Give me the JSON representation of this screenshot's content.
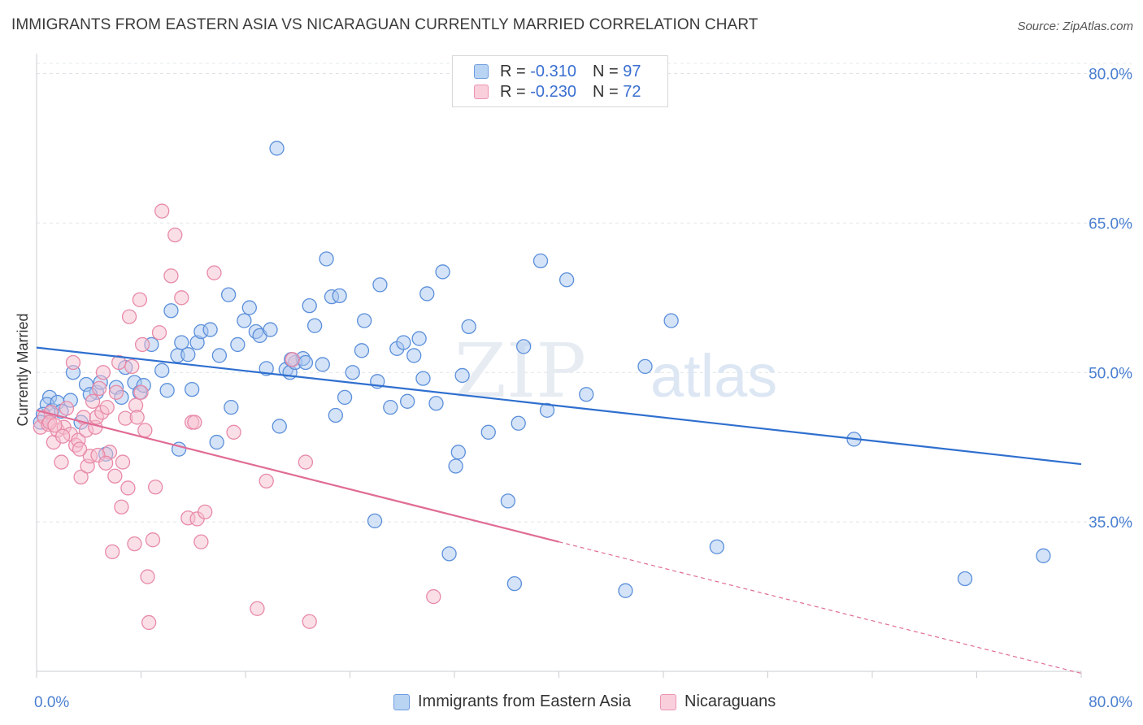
{
  "title": "IMMIGRANTS FROM EASTERN ASIA VS NICARAGUAN CURRENTLY MARRIED CORRELATION CHART",
  "source": "Source: ZipAtlas.com",
  "watermark": "ZIPatlas",
  "legend_box": {
    "rows": [
      {
        "r_label": "R =",
        "r_value": "-0.310",
        "n_label": "N =",
        "n_value": "97"
      },
      {
        "r_label": "R =",
        "r_value": "-0.230",
        "n_label": "N =",
        "n_value": "72"
      }
    ]
  },
  "bottom_legend": [
    "Immigrants from Eastern Asia",
    "Nicaraguans"
  ],
  "colors": {
    "blue_fill": "#a9c8f0",
    "blue_stroke": "#5b8fdb",
    "blue_line": "#2f6fcf",
    "pink_fill": "#f6bfd0",
    "pink_stroke": "#e88aa8",
    "pink_line": "#e06c95"
  },
  "chart_data": {
    "type": "scatter",
    "xlabel": "",
    "ylabel": "Currently Married",
    "xlim": [
      0,
      80
    ],
    "ylim": [
      20,
      82
    ],
    "x_tick_labels": [
      "0.0%",
      "80.0%"
    ],
    "y_ticks": [
      35,
      50,
      65,
      80
    ],
    "y_tick_labels": [
      "35.0%",
      "50.0%",
      "65.0%",
      "80.0%"
    ],
    "grid": true,
    "legend_position": "top-center",
    "series": [
      {
        "name": "Immigrants from Eastern Asia",
        "R": -0.31,
        "N": 97,
        "trend": {
          "x0": 0,
          "y0": 52.5,
          "x1": 80,
          "y1": 40.8
        },
        "points": [
          [
            1.0,
            47.5
          ],
          [
            0.8,
            46.8
          ],
          [
            1.2,
            46.2
          ],
          [
            0.5,
            45.8
          ],
          [
            1.6,
            47.0
          ],
          [
            2.6,
            47.2
          ],
          [
            2.8,
            50.0
          ],
          [
            3.4,
            45.0
          ],
          [
            3.8,
            48.8
          ],
          [
            4.6,
            48.0
          ],
          [
            4.9,
            49.0
          ],
          [
            5.3,
            41.8
          ],
          [
            6.1,
            48.5
          ],
          [
            6.5,
            47.5
          ],
          [
            6.8,
            50.5
          ],
          [
            7.5,
            49.0
          ],
          [
            7.9,
            48.0
          ],
          [
            8.2,
            48.7
          ],
          [
            8.8,
            52.8
          ],
          [
            9.6,
            50.2
          ],
          [
            10.0,
            48.2
          ],
          [
            10.3,
            56.2
          ],
          [
            10.8,
            51.7
          ],
          [
            11.1,
            53.0
          ],
          [
            11.6,
            51.8
          ],
          [
            11.9,
            48.3
          ],
          [
            12.3,
            53.0
          ],
          [
            12.6,
            54.1
          ],
          [
            13.3,
            54.3
          ],
          [
            13.8,
            43.0
          ],
          [
            14.0,
            51.7
          ],
          [
            14.7,
            57.8
          ],
          [
            14.9,
            46.5
          ],
          [
            15.4,
            52.8
          ],
          [
            15.9,
            55.2
          ],
          [
            16.3,
            56.5
          ],
          [
            16.8,
            54.1
          ],
          [
            17.1,
            53.7
          ],
          [
            17.6,
            50.4
          ],
          [
            17.9,
            54.3
          ],
          [
            18.4,
            72.5
          ],
          [
            18.6,
            44.6
          ],
          [
            19.1,
            50.3
          ],
          [
            19.4,
            50.0
          ],
          [
            19.8,
            51.0
          ],
          [
            20.4,
            51.4
          ],
          [
            20.6,
            51.0
          ],
          [
            20.9,
            56.7
          ],
          [
            21.3,
            54.7
          ],
          [
            21.9,
            50.8
          ],
          [
            22.2,
            61.4
          ],
          [
            22.6,
            57.6
          ],
          [
            22.9,
            45.7
          ],
          [
            23.2,
            57.7
          ],
          [
            23.6,
            47.5
          ],
          [
            24.2,
            50.0
          ],
          [
            24.9,
            52.2
          ],
          [
            25.1,
            55.2
          ],
          [
            26.1,
            49.1
          ],
          [
            26.3,
            58.8
          ],
          [
            27.1,
            46.5
          ],
          [
            27.6,
            52.4
          ],
          [
            28.1,
            53.0
          ],
          [
            28.4,
            47.1
          ],
          [
            28.9,
            51.7
          ],
          [
            29.3,
            53.4
          ],
          [
            29.6,
            49.4
          ],
          [
            29.9,
            57.9
          ],
          [
            30.6,
            46.9
          ],
          [
            31.1,
            60.1
          ],
          [
            31.6,
            31.8
          ],
          [
            32.1,
            40.6
          ],
          [
            32.3,
            42.0
          ],
          [
            32.6,
            49.7
          ],
          [
            33.1,
            54.6
          ],
          [
            34.6,
            44.0
          ],
          [
            36.1,
            37.1
          ],
          [
            36.6,
            28.8
          ],
          [
            37.3,
            52.6
          ],
          [
            38.6,
            61.2
          ],
          [
            39.1,
            46.2
          ],
          [
            40.6,
            59.3
          ],
          [
            42.1,
            47.8
          ],
          [
            45.1,
            28.1
          ],
          [
            46.6,
            50.6
          ],
          [
            48.6,
            55.2
          ],
          [
            52.1,
            32.5
          ],
          [
            62.6,
            43.3
          ],
          [
            71.1,
            29.3
          ],
          [
            77.1,
            31.6
          ],
          [
            0.3,
            45.0
          ],
          [
            1.9,
            46.1
          ],
          [
            4.1,
            47.8
          ],
          [
            10.9,
            42.3
          ],
          [
            19.5,
            51.3
          ],
          [
            25.9,
            35.1
          ],
          [
            36.9,
            44.9
          ]
        ]
      },
      {
        "name": "Nicaraguans",
        "R": -0.23,
        "N": 72,
        "trend": {
          "x0": 0,
          "y0": 46.2,
          "x1": 40,
          "y1": 33.0,
          "dashed_to": {
            "x": 80,
            "y": 19.8
          }
        },
        "points": [
          [
            0.3,
            44.5
          ],
          [
            0.6,
            45.5
          ],
          [
            0.9,
            44.8
          ],
          [
            1.1,
            46.0
          ],
          [
            1.3,
            43.0
          ],
          [
            1.6,
            44.2
          ],
          [
            1.9,
            41.0
          ],
          [
            2.1,
            44.5
          ],
          [
            2.3,
            46.4
          ],
          [
            2.6,
            43.8
          ],
          [
            2.8,
            51.0
          ],
          [
            3.0,
            42.7
          ],
          [
            3.2,
            43.2
          ],
          [
            3.4,
            39.5
          ],
          [
            3.6,
            45.5
          ],
          [
            3.8,
            44.2
          ],
          [
            3.9,
            40.6
          ],
          [
            4.1,
            41.6
          ],
          [
            4.3,
            47.1
          ],
          [
            4.5,
            44.5
          ],
          [
            4.6,
            45.5
          ],
          [
            4.8,
            48.4
          ],
          [
            5.0,
            46.0
          ],
          [
            5.1,
            50.0
          ],
          [
            5.4,
            46.5
          ],
          [
            5.6,
            42.0
          ],
          [
            5.8,
            32.0
          ],
          [
            6.0,
            39.6
          ],
          [
            6.3,
            51.0
          ],
          [
            6.5,
            36.5
          ],
          [
            6.6,
            41.0
          ],
          [
            6.8,
            45.4
          ],
          [
            7.0,
            38.4
          ],
          [
            7.1,
            55.6
          ],
          [
            7.3,
            50.6
          ],
          [
            7.5,
            32.8
          ],
          [
            7.6,
            46.7
          ],
          [
            7.9,
            57.3
          ],
          [
            8.1,
            52.8
          ],
          [
            8.3,
            44.2
          ],
          [
            8.5,
            29.5
          ],
          [
            8.6,
            24.9
          ],
          [
            8.9,
            33.2
          ],
          [
            9.1,
            38.5
          ],
          [
            9.6,
            66.2
          ],
          [
            10.3,
            59.7
          ],
          [
            10.6,
            63.8
          ],
          [
            11.1,
            57.5
          ],
          [
            11.6,
            35.4
          ],
          [
            11.9,
            45.0
          ],
          [
            12.3,
            35.3
          ],
          [
            12.6,
            33.0
          ],
          [
            12.9,
            36.0
          ],
          [
            13.6,
            60.0
          ],
          [
            16.9,
            26.3
          ],
          [
            19.6,
            51.3
          ],
          [
            20.6,
            41.0
          ],
          [
            20.9,
            25.0
          ],
          [
            30.4,
            27.5
          ],
          [
            1.0,
            45.0
          ],
          [
            1.4,
            44.7
          ],
          [
            2.0,
            43.6
          ],
          [
            3.3,
            42.3
          ],
          [
            4.7,
            41.7
          ],
          [
            5.3,
            40.9
          ],
          [
            6.1,
            48.0
          ],
          [
            7.7,
            45.5
          ],
          [
            8.0,
            48.0
          ],
          [
            9.4,
            54.0
          ],
          [
            12.1,
            45.0
          ],
          [
            15.1,
            44.0
          ],
          [
            17.6,
            39.1
          ]
        ]
      }
    ]
  }
}
